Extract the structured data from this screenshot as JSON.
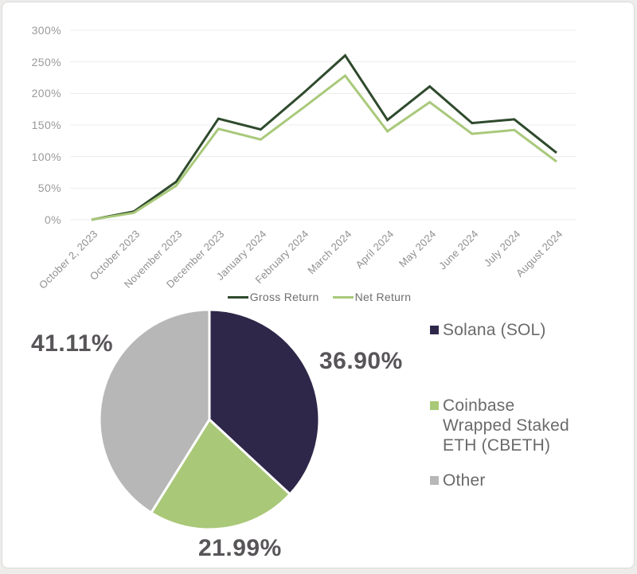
{
  "card": {
    "background": "#ffffff",
    "border_color": "#dcdad9"
  },
  "chart_data": [
    {
      "type": "line",
      "title": "",
      "xlabel": "",
      "ylabel": "",
      "x": [
        "October 2, 2023",
        "October 2023",
        "November 2023",
        "December 2023",
        "January 2024",
        "February 2024",
        "March 2024",
        "April 2024",
        "May 2024",
        "June 2024",
        "July 2024",
        "August 2024"
      ],
      "series": [
        {
          "name": "Gross Return",
          "color": "#2F4A2D",
          "values": [
            0,
            13,
            60,
            160,
            143,
            200,
            260,
            158,
            211,
            153,
            159,
            106
          ]
        },
        {
          "name": "Net Return",
          "color": "#A9C97B",
          "values": [
            0,
            11,
            54,
            144,
            127,
            177,
            228,
            140,
            186,
            136,
            142,
            92
          ]
        }
      ],
      "ylim": [
        0,
        300
      ],
      "yticks": [
        "300%",
        "250%",
        "200%",
        "150%",
        "100%",
        "50%",
        "0%"
      ],
      "ytick_values": [
        300,
        250,
        200,
        150,
        100,
        50,
        0
      ],
      "grid": true,
      "grid_color": "#ececec",
      "axis_text_color": "#9a9a9a",
      "x_axis_label_rotation_deg": -45,
      "legend_position": "bottom"
    },
    {
      "type": "pie",
      "start_angle": "12-oclock",
      "direction": "clockwise",
      "slices": [
        {
          "label": "Solana (SOL)",
          "value": 36.9,
          "display": "36.90%",
          "color": "#2E2749",
          "legend_lines": [
            "Solana (SOL)"
          ]
        },
        {
          "label": "Coinbase Wrapped Staked ETH (CBETH)",
          "value": 21.99,
          "display": "21.99%",
          "color": "#A9C878",
          "legend_lines": [
            "Coinbase",
            "Wrapped Staked",
            "ETH (CBETH)"
          ]
        },
        {
          "label": "Other",
          "value": 41.11,
          "display": "41.11%",
          "color": "#B7B7B7",
          "legend_lines": [
            "Other"
          ]
        }
      ],
      "slice_gap_color": "#ffffff",
      "value_label_color": "#585558",
      "legend_text_color": "#6a6a6a",
      "legend_position": "right"
    }
  ]
}
